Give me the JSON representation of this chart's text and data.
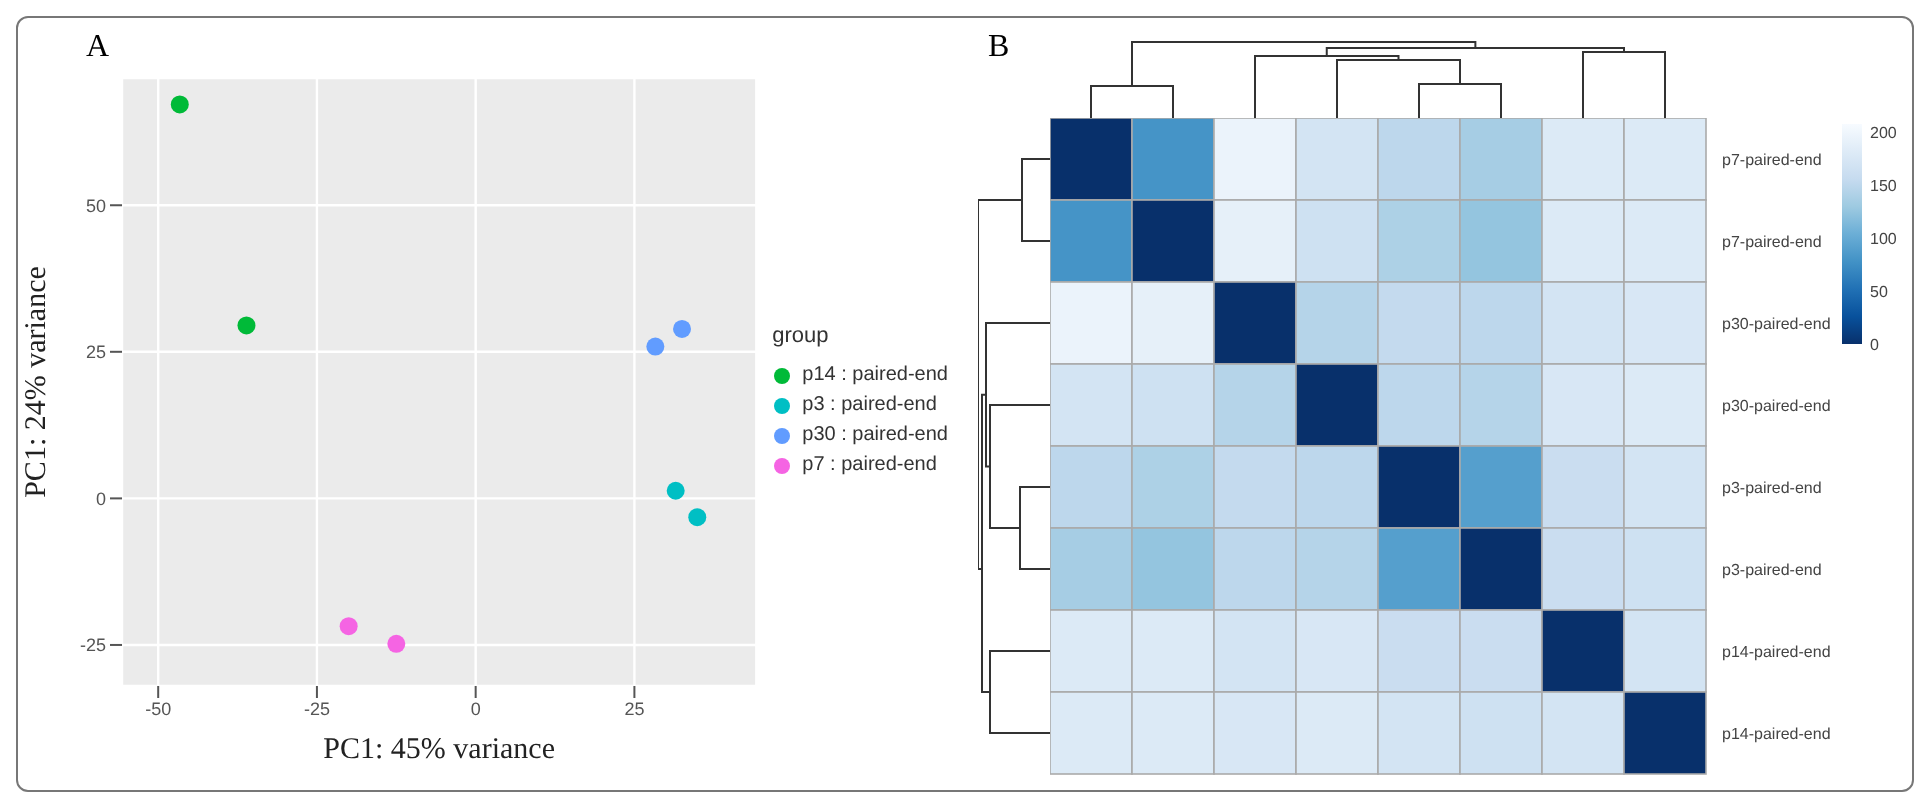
{
  "chart_data": [
    {
      "type": "scatter",
      "title": "A",
      "xlabel": "PC1: 45% variance",
      "ylabel": "PC1: 24% variance",
      "legend_title": "group",
      "legend": "right",
      "grid": true,
      "marker": "circle",
      "xlim": [
        -55.7,
        44.2
      ],
      "xticks": [
        -50,
        -25,
        0,
        25
      ],
      "ylim": [
        -32,
        71.7
      ],
      "yticks": [
        -25,
        0,
        25,
        50
      ],
      "series": [
        {
          "name": "p14 : paired-end",
          "color": "#00ba38",
          "x": [
            -46.6,
            -36.1
          ],
          "values": [
            67.2,
            29.5
          ]
        },
        {
          "name": "p3 : paired-end",
          "color": "#00bfc4",
          "x": [
            31.5,
            34.9
          ],
          "values": [
            1.3,
            -3.2
          ]
        },
        {
          "name": "p30 : paired-end",
          "color": "#619cff",
          "x": [
            28.3,
            32.5
          ],
          "values": [
            25.9,
            28.9
          ]
        },
        {
          "name": "p7 : paired-end",
          "color": "#f564e3",
          "x": [
            -20.0,
            -12.5
          ],
          "values": [
            -21.8,
            -24.8
          ]
        }
      ]
    },
    {
      "type": "heatmap",
      "title": "B",
      "categories": [
        null,
        null,
        null,
        null,
        null,
        null,
        null,
        null
      ],
      "y_categories": [
        "p7-paired-end",
        "p7-paired-end",
        "p30-paired-end",
        "p30-paired-end",
        "p3-paired-end",
        "p3-paired-end",
        "p14-paired-end",
        "p14-paired-end"
      ],
      "clim": [
        0,
        208
      ],
      "cticks": [
        0,
        50,
        100,
        150,
        200
      ],
      "cells": [
        [
          0,
          80,
          195,
          170,
          150,
          135,
          180,
          180
        ],
        [
          80,
          0,
          190,
          165,
          140,
          125,
          180,
          180
        ],
        [
          195,
          190,
          0,
          145,
          155,
          150,
          170,
          175
        ],
        [
          170,
          165,
          145,
          0,
          150,
          145,
          175,
          180
        ],
        [
          150,
          140,
          155,
          150,
          0,
          90,
          160,
          170
        ],
        [
          135,
          125,
          150,
          145,
          90,
          0,
          160,
          165
        ],
        [
          180,
          180,
          170,
          175,
          160,
          160,
          0,
          170
        ],
        [
          180,
          180,
          175,
          180,
          170,
          165,
          170,
          0
        ]
      ]
    }
  ]
}
